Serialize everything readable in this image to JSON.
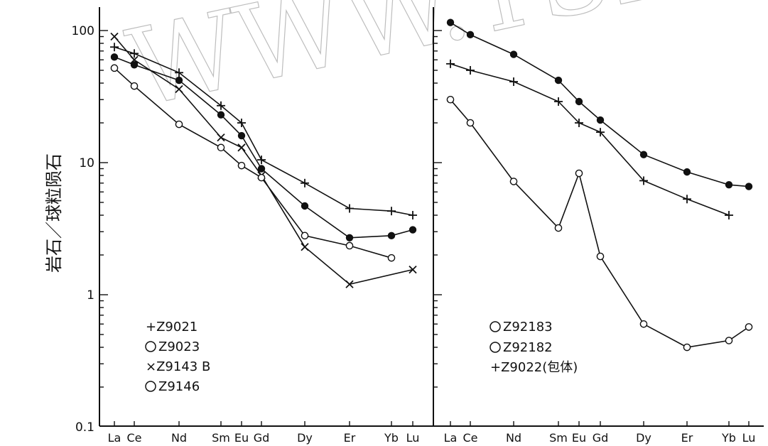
{
  "chart_data": {
    "type": "line",
    "ylabel": "岩石／球粒陨石",
    "yscale": "log",
    "ylim": [
      0.1,
      150
    ],
    "ytick_labels": [
      "100",
      "10",
      "1",
      "0.1"
    ],
    "watermark": "WWW.YSKW.C",
    "categories": [
      "La",
      "Ce",
      "Nd",
      "Sm",
      "Eu",
      "Gd",
      "Dy",
      "Er",
      "Yb",
      "Lu"
    ],
    "panels": [
      {
        "series": [
          {
            "name": "Z9021",
            "legend_label": "+Z9021",
            "marker": "plus",
            "values": [
              75,
              67,
              48,
              27,
              20,
              10.5,
              7,
              4.5,
              4.3,
              4
            ]
          },
          {
            "name": "Z9023",
            "legend_label": "Z9023",
            "marker": "filled-circle",
            "values": [
              63,
              55,
              42,
              23,
              16,
              9,
              4.7,
              2.7,
              2.8,
              3.1
            ]
          },
          {
            "name": "Z9143 B",
            "legend_label": "×Z9143 B",
            "marker": "cross",
            "values": [
              90,
              60,
              36,
              15.5,
              13,
              8,
              2.3,
              1.2,
              null,
              1.55
            ]
          },
          {
            "name": "Z9146",
            "legend_label": "Z9146",
            "marker": "open-circle",
            "values": [
              52,
              38,
              19.5,
              13,
              9.5,
              7.7,
              2.8,
              2.35,
              1.9,
              null
            ]
          }
        ]
      },
      {
        "series": [
          {
            "name": "Z92183",
            "legend_label": "Z92183",
            "marker": "filled-circle",
            "values": [
              115,
              93,
              66,
              42,
              29,
              21,
              11.5,
              8.5,
              6.8,
              6.6
            ]
          },
          {
            "name": "Z92182",
            "legend_label": "Z92182",
            "marker": "open-circle",
            "values": [
              30,
              20,
              7.2,
              3.2,
              8.3,
              1.95,
              0.6,
              0.4,
              0.45,
              0.57
            ]
          },
          {
            "name": "Z9022(包体)",
            "legend_label": "+Z9022(包体)",
            "marker": "plus",
            "values": [
              56,
              50,
              41,
              29,
              20,
              17,
              7.3,
              5.3,
              4,
              null
            ]
          }
        ]
      }
    ]
  }
}
